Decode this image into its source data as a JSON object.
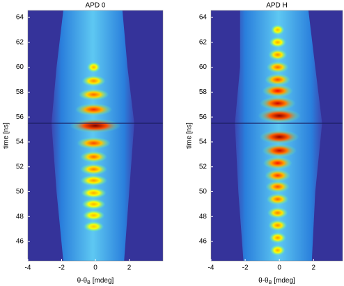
{
  "chart_data": [
    {
      "type": "heatmap",
      "title": "APD 0",
      "ylabel": "time [ns]",
      "xlabel": [
        "θ-θ",
        "B",
        "[mdeg]"
      ],
      "xlim": [
        -4,
        4
      ],
      "ylim": [
        44.44,
        64.56
      ],
      "xticks": [
        -4,
        -2,
        0,
        2
      ],
      "yticks": [
        46,
        48,
        50,
        52,
        54,
        56,
        58,
        60,
        62,
        64
      ],
      "background": "#35339a",
      "envelope": {
        "time": [
          44.44,
          50,
          55.5,
          60,
          64.56
        ],
        "left": [
          -1.9,
          -2.3,
          -2.6,
          -2.3,
          -1.9
        ],
        "right": [
          1.7,
          2.0,
          2.3,
          1.9,
          1.6
        ]
      },
      "fringes": {
        "time": [
          47.2,
          48.1,
          49.0,
          49.9,
          50.9,
          51.8,
          52.8,
          53.9,
          55.3,
          56.6,
          57.8,
          58.9,
          60.0
        ],
        "center": [
          -0.1,
          -0.1,
          -0.1,
          -0.1,
          -0.1,
          -0.1,
          -0.1,
          -0.1,
          0.0,
          -0.1,
          -0.1,
          -0.1,
          -0.1
        ],
        "width": [
          1.2,
          1.3,
          1.4,
          1.5,
          1.6,
          1.6,
          1.6,
          2.0,
          3.0,
          2.2,
          1.8,
          1.4,
          0.8
        ],
        "level": [
          0.35,
          0.38,
          0.4,
          0.42,
          0.45,
          0.5,
          0.55,
          0.62,
          1.0,
          0.68,
          0.55,
          0.48,
          0.4
        ]
      },
      "streak": 55.5
    },
    {
      "type": "heatmap",
      "title": "APD H",
      "ylabel": "time [ns]",
      "xlabel": [
        "θ-θ",
        "B",
        "[mdeg]"
      ],
      "xlim": [
        -4,
        3.7
      ],
      "ylim": [
        44.44,
        64.56
      ],
      "xticks": [
        -4,
        -2,
        0,
        2
      ],
      "yticks": [
        46,
        48,
        50,
        52,
        54,
        56,
        58,
        60,
        62,
        64
      ],
      "background": "#35339a",
      "envelope": {
        "time": [
          44.44,
          50,
          55.5,
          60,
          64.56
        ],
        "left": [
          -2.1,
          -2.4,
          -2.6,
          -2.3,
          -2.3
        ],
        "right": [
          1.9,
          2.1,
          2.5,
          2.1,
          1.7
        ]
      },
      "fringes": {
        "time": [
          45.3,
          46.3,
          47.3,
          48.3,
          49.4,
          50.4,
          51.3,
          52.3,
          53.3,
          54.4,
          56.1,
          57.1,
          58.1,
          59.0,
          60.0,
          61.0,
          62.0,
          63.0
        ],
        "center": [
          -0.1,
          -0.1,
          -0.1,
          -0.1,
          -0.1,
          -0.1,
          -0.1,
          -0.1,
          0.0,
          0.0,
          0.0,
          -0.1,
          -0.1,
          -0.1,
          -0.1,
          -0.1,
          -0.1,
          -0.1
        ],
        "width": [
          0.9,
          1.0,
          1.1,
          1.2,
          1.3,
          1.4,
          1.5,
          1.7,
          2.0,
          2.3,
          2.5,
          2.1,
          1.8,
          1.5,
          1.3,
          1.1,
          1.0,
          0.8
        ],
        "level": [
          0.42,
          0.45,
          0.48,
          0.5,
          0.55,
          0.6,
          0.65,
          0.72,
          0.85,
          0.95,
          0.97,
          0.85,
          0.75,
          0.62,
          0.55,
          0.48,
          0.42,
          0.38
        ]
      },
      "streak": 55.5
    }
  ]
}
